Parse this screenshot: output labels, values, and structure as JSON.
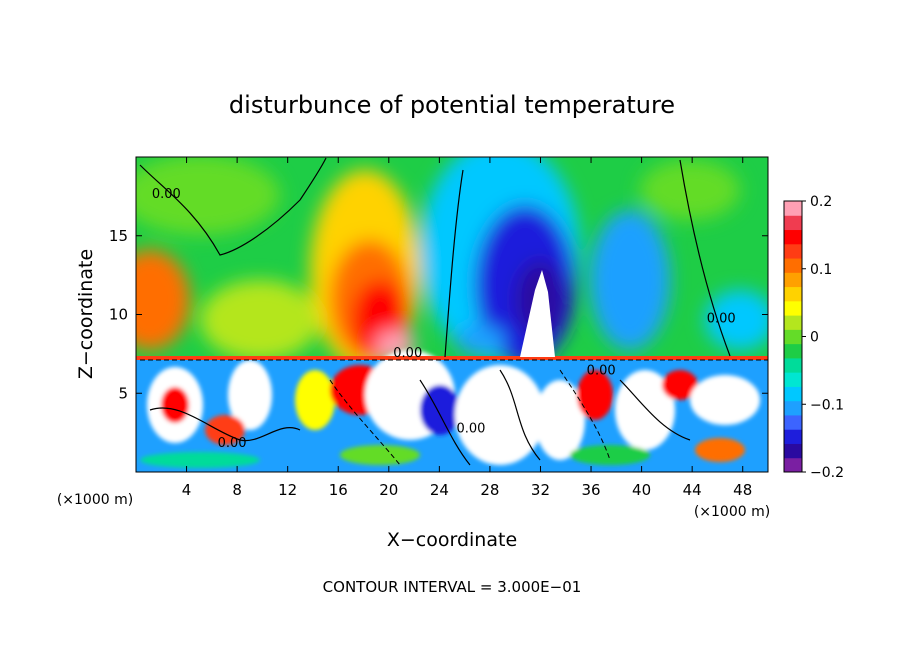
{
  "chart_data": {
    "type": "heatmap",
    "title": "disturbunce of potential temperature",
    "xlabel": "X−coordinate",
    "ylabel": "Z−coordinate",
    "x_unit": "(×1000 m)",
    "y_unit": "(×1000 m)",
    "xlim": [
      0,
      50
    ],
    "ylim": [
      0,
      20
    ],
    "xticks": [
      4,
      8,
      12,
      16,
      20,
      24,
      28,
      32,
      36,
      40,
      44,
      48
    ],
    "yticks": [
      5,
      10,
      15
    ],
    "colorbar": {
      "range": [
        -0.2,
        0.2
      ],
      "ticks": [
        {
          "value": 0.2,
          "label": "0.2"
        },
        {
          "value": 0.1,
          "label": "0.1"
        },
        {
          "value": 0,
          "label": "0"
        },
        {
          "value": -0.1,
          "label": "−0.1"
        },
        {
          "value": -0.2,
          "label": "−0.2"
        }
      ],
      "colors": [
        "#7a1fa2",
        "#2a0aa0",
        "#1e1edc",
        "#3c64ff",
        "#1ea0ff",
        "#00c8ff",
        "#00e6d2",
        "#00dc9a",
        "#1ecd46",
        "#64dc28",
        "#b4e61e",
        "#ffff00",
        "#ffd200",
        "#ffa000",
        "#ff6e00",
        "#ff3c14",
        "#ff0000",
        "#f03c50",
        "#ffa0b4"
      ]
    },
    "contour_labels": [
      {
        "text": "0.00",
        "x": 2.4,
        "z": 17.4
      },
      {
        "text": "0.00",
        "x": 7.6,
        "z": 1.6
      },
      {
        "text": "0.00",
        "x": 21.5,
        "z": 7.3
      },
      {
        "text": "0.00",
        "x": 26.5,
        "z": 2.5
      },
      {
        "text": "0.00",
        "x": 36.8,
        "z": 6.2
      },
      {
        "text": "0.00",
        "x": 46.3,
        "z": 9.5
      }
    ],
    "contour_interval_label": "CONTOUR INTERVAL = 3.000E−01",
    "grid": false
  }
}
